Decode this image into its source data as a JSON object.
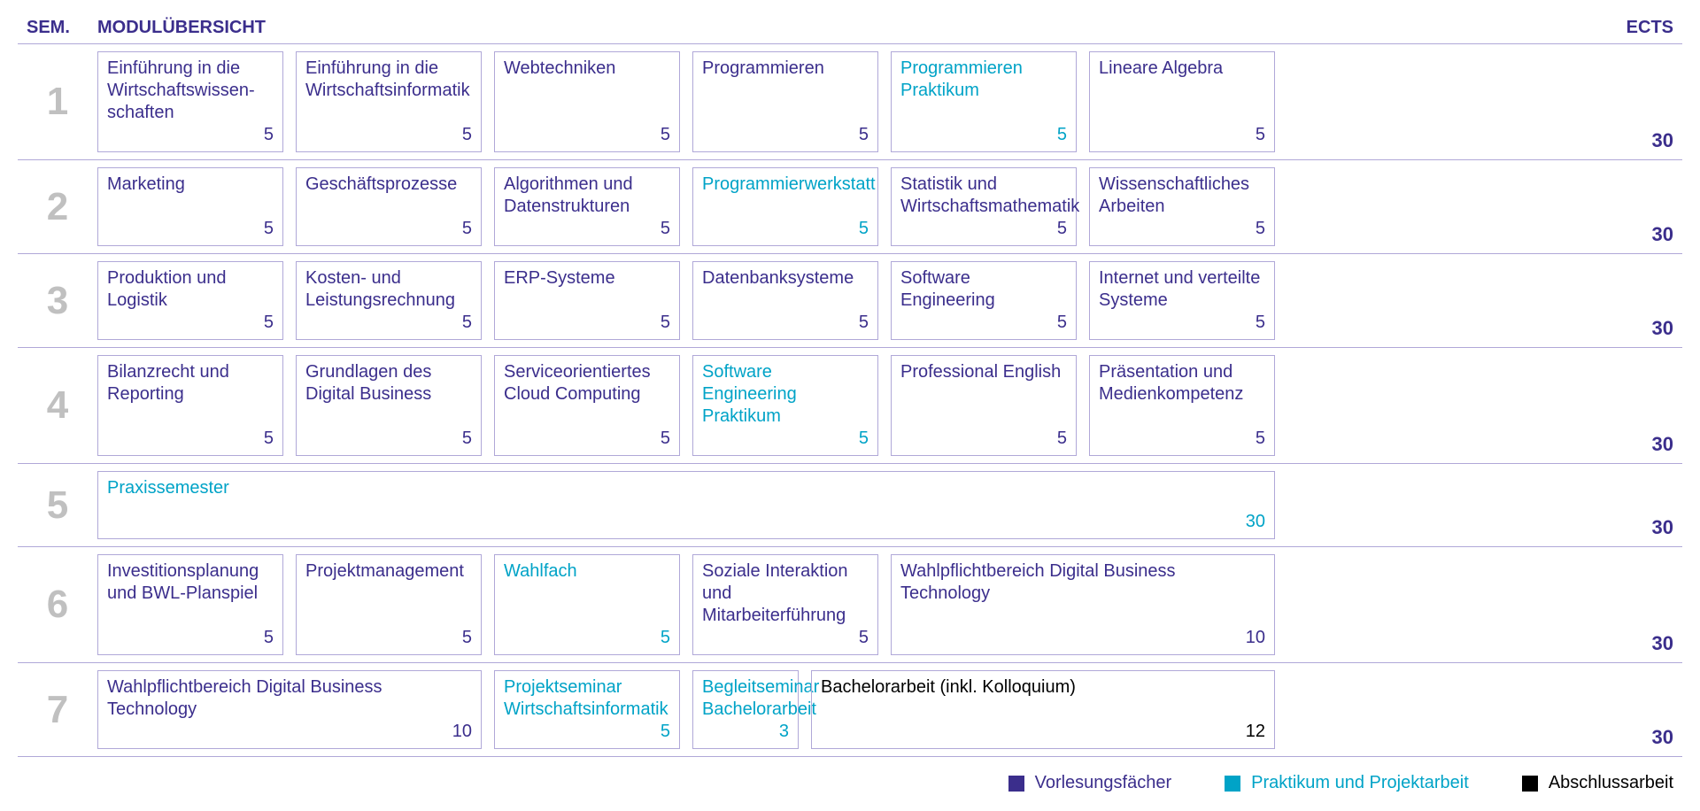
{
  "colors": {
    "lecture": "#3b2e8c",
    "project": "#00a3c7",
    "thesis": "#000000",
    "border": "#b0a8d8",
    "semNumber": "#c0c0c0",
    "background": "#ffffff"
  },
  "layout": {
    "baseColWidth": 210,
    "gap": 14,
    "semColWidth": 90,
    "ectsColWidth": 90
  },
  "header": {
    "sem": "SEM.",
    "title": "MODULÜBERSICHT",
    "ects": "ECTS"
  },
  "legend": [
    {
      "label": "Vorlesungsfächer",
      "type": "lecture"
    },
    {
      "label": "Praktikum und Projektarbeit",
      "type": "project"
    },
    {
      "label": "Abschlussarbeit",
      "type": "thesis"
    }
  ],
  "semesters": [
    {
      "num": "1",
      "ects": "30",
      "modules": [
        {
          "title": "Einführung in die Wirtschaftswissen­schaften",
          "credits": "5",
          "type": "lecture",
          "span": 1
        },
        {
          "title": "Einführung in die Wirtschaftsinformatik",
          "credits": "5",
          "type": "lecture",
          "span": 1
        },
        {
          "title": "Webtechniken",
          "credits": "5",
          "type": "lecture",
          "span": 1
        },
        {
          "title": "Programmieren",
          "credits": "5",
          "type": "lecture",
          "span": 1
        },
        {
          "title": "Programmieren Praktikum",
          "credits": "5",
          "type": "project",
          "span": 1
        },
        {
          "title": "Lineare Algebra",
          "credits": "5",
          "type": "lecture",
          "span": 1
        }
      ]
    },
    {
      "num": "2",
      "ects": "30",
      "modules": [
        {
          "title": "Marketing",
          "credits": "5",
          "type": "lecture",
          "span": 1
        },
        {
          "title": "Geschäftsprozesse",
          "credits": "5",
          "type": "lecture",
          "span": 1
        },
        {
          "title": "Algorithmen und Datenstrukturen",
          "credits": "5",
          "type": "lecture",
          "span": 1
        },
        {
          "title": "Programmierwerkstatt",
          "credits": "5",
          "type": "project",
          "span": 1
        },
        {
          "title": "Statistik und Wirtschaftsmathematik",
          "credits": "5",
          "type": "lecture",
          "span": 1
        },
        {
          "title": "Wissenschaftliches Arbeiten",
          "credits": "5",
          "type": "lecture",
          "span": 1
        }
      ]
    },
    {
      "num": "3",
      "ects": "30",
      "modules": [
        {
          "title": "Produktion und Logistik",
          "credits": "5",
          "type": "lecture",
          "span": 1
        },
        {
          "title": "Kosten- und Leistungsrechnung",
          "credits": "5",
          "type": "lecture",
          "span": 1
        },
        {
          "title": "ERP-Systeme",
          "credits": "5",
          "type": "lecture",
          "span": 1
        },
        {
          "title": "Datenbanksysteme",
          "credits": "5",
          "type": "lecture",
          "span": 1
        },
        {
          "title": "Software Engineering",
          "credits": "5",
          "type": "lecture",
          "span": 1
        },
        {
          "title": "Internet und verteilte Systeme",
          "credits": "5",
          "type": "lecture",
          "span": 1
        }
      ]
    },
    {
      "num": "4",
      "ects": "30",
      "modules": [
        {
          "title": "Bilanzrecht und Reporting",
          "credits": "5",
          "type": "lecture",
          "span": 1
        },
        {
          "title": "Grundlagen des Digital Business",
          "credits": "5",
          "type": "lecture",
          "span": 1
        },
        {
          "title": "Serviceorientiertes Cloud Computing",
          "credits": "5",
          "type": "lecture",
          "span": 1
        },
        {
          "title": "Software Engineering Praktikum",
          "credits": "5",
          "type": "project",
          "span": 1
        },
        {
          "title": "Professional English",
          "credits": "5",
          "type": "lecture",
          "span": 1
        },
        {
          "title": "Präsentation und Medienkompetenz",
          "credits": "5",
          "type": "lecture",
          "span": 1
        }
      ]
    },
    {
      "num": "5",
      "ects": "30",
      "modules": [
        {
          "title": "Praxissemester",
          "credits": "30",
          "type": "project",
          "span": 6
        }
      ]
    },
    {
      "num": "6",
      "ects": "30",
      "modules": [
        {
          "title": "Investitionsplanung und BWL-Planspiel",
          "credits": "5",
          "type": "lecture",
          "span": 1
        },
        {
          "title": "Projektmanagement",
          "credits": "5",
          "type": "lecture",
          "span": 1
        },
        {
          "title": "Wahlfach",
          "credits": "5",
          "type": "project",
          "span": 1
        },
        {
          "title": "Soziale Interaktion und Mitarbeiterführung",
          "credits": "5",
          "type": "lecture",
          "span": 1
        },
        {
          "title": "Wahlpflichtbereich Digital Business Technology",
          "credits": "10",
          "type": "lecture",
          "span": 2
        }
      ]
    },
    {
      "num": "7",
      "ects": "30",
      "modules": [
        {
          "title": "Wahlpflichtbereich Digital Business Technology",
          "credits": "10",
          "type": "lecture",
          "span": 2
        },
        {
          "title": "Projektseminar Wirtschaftsinformatik",
          "credits": "5",
          "type": "project",
          "span": 1
        },
        {
          "title": "Begleitseminar Bachelorarbeit",
          "credits": "3",
          "type": "project",
          "span": 0.6
        },
        {
          "title": "Bachelorarbeit (inkl. Kolloquium)",
          "credits": "12",
          "type": "thesis",
          "span": 2.4
        }
      ]
    }
  ]
}
